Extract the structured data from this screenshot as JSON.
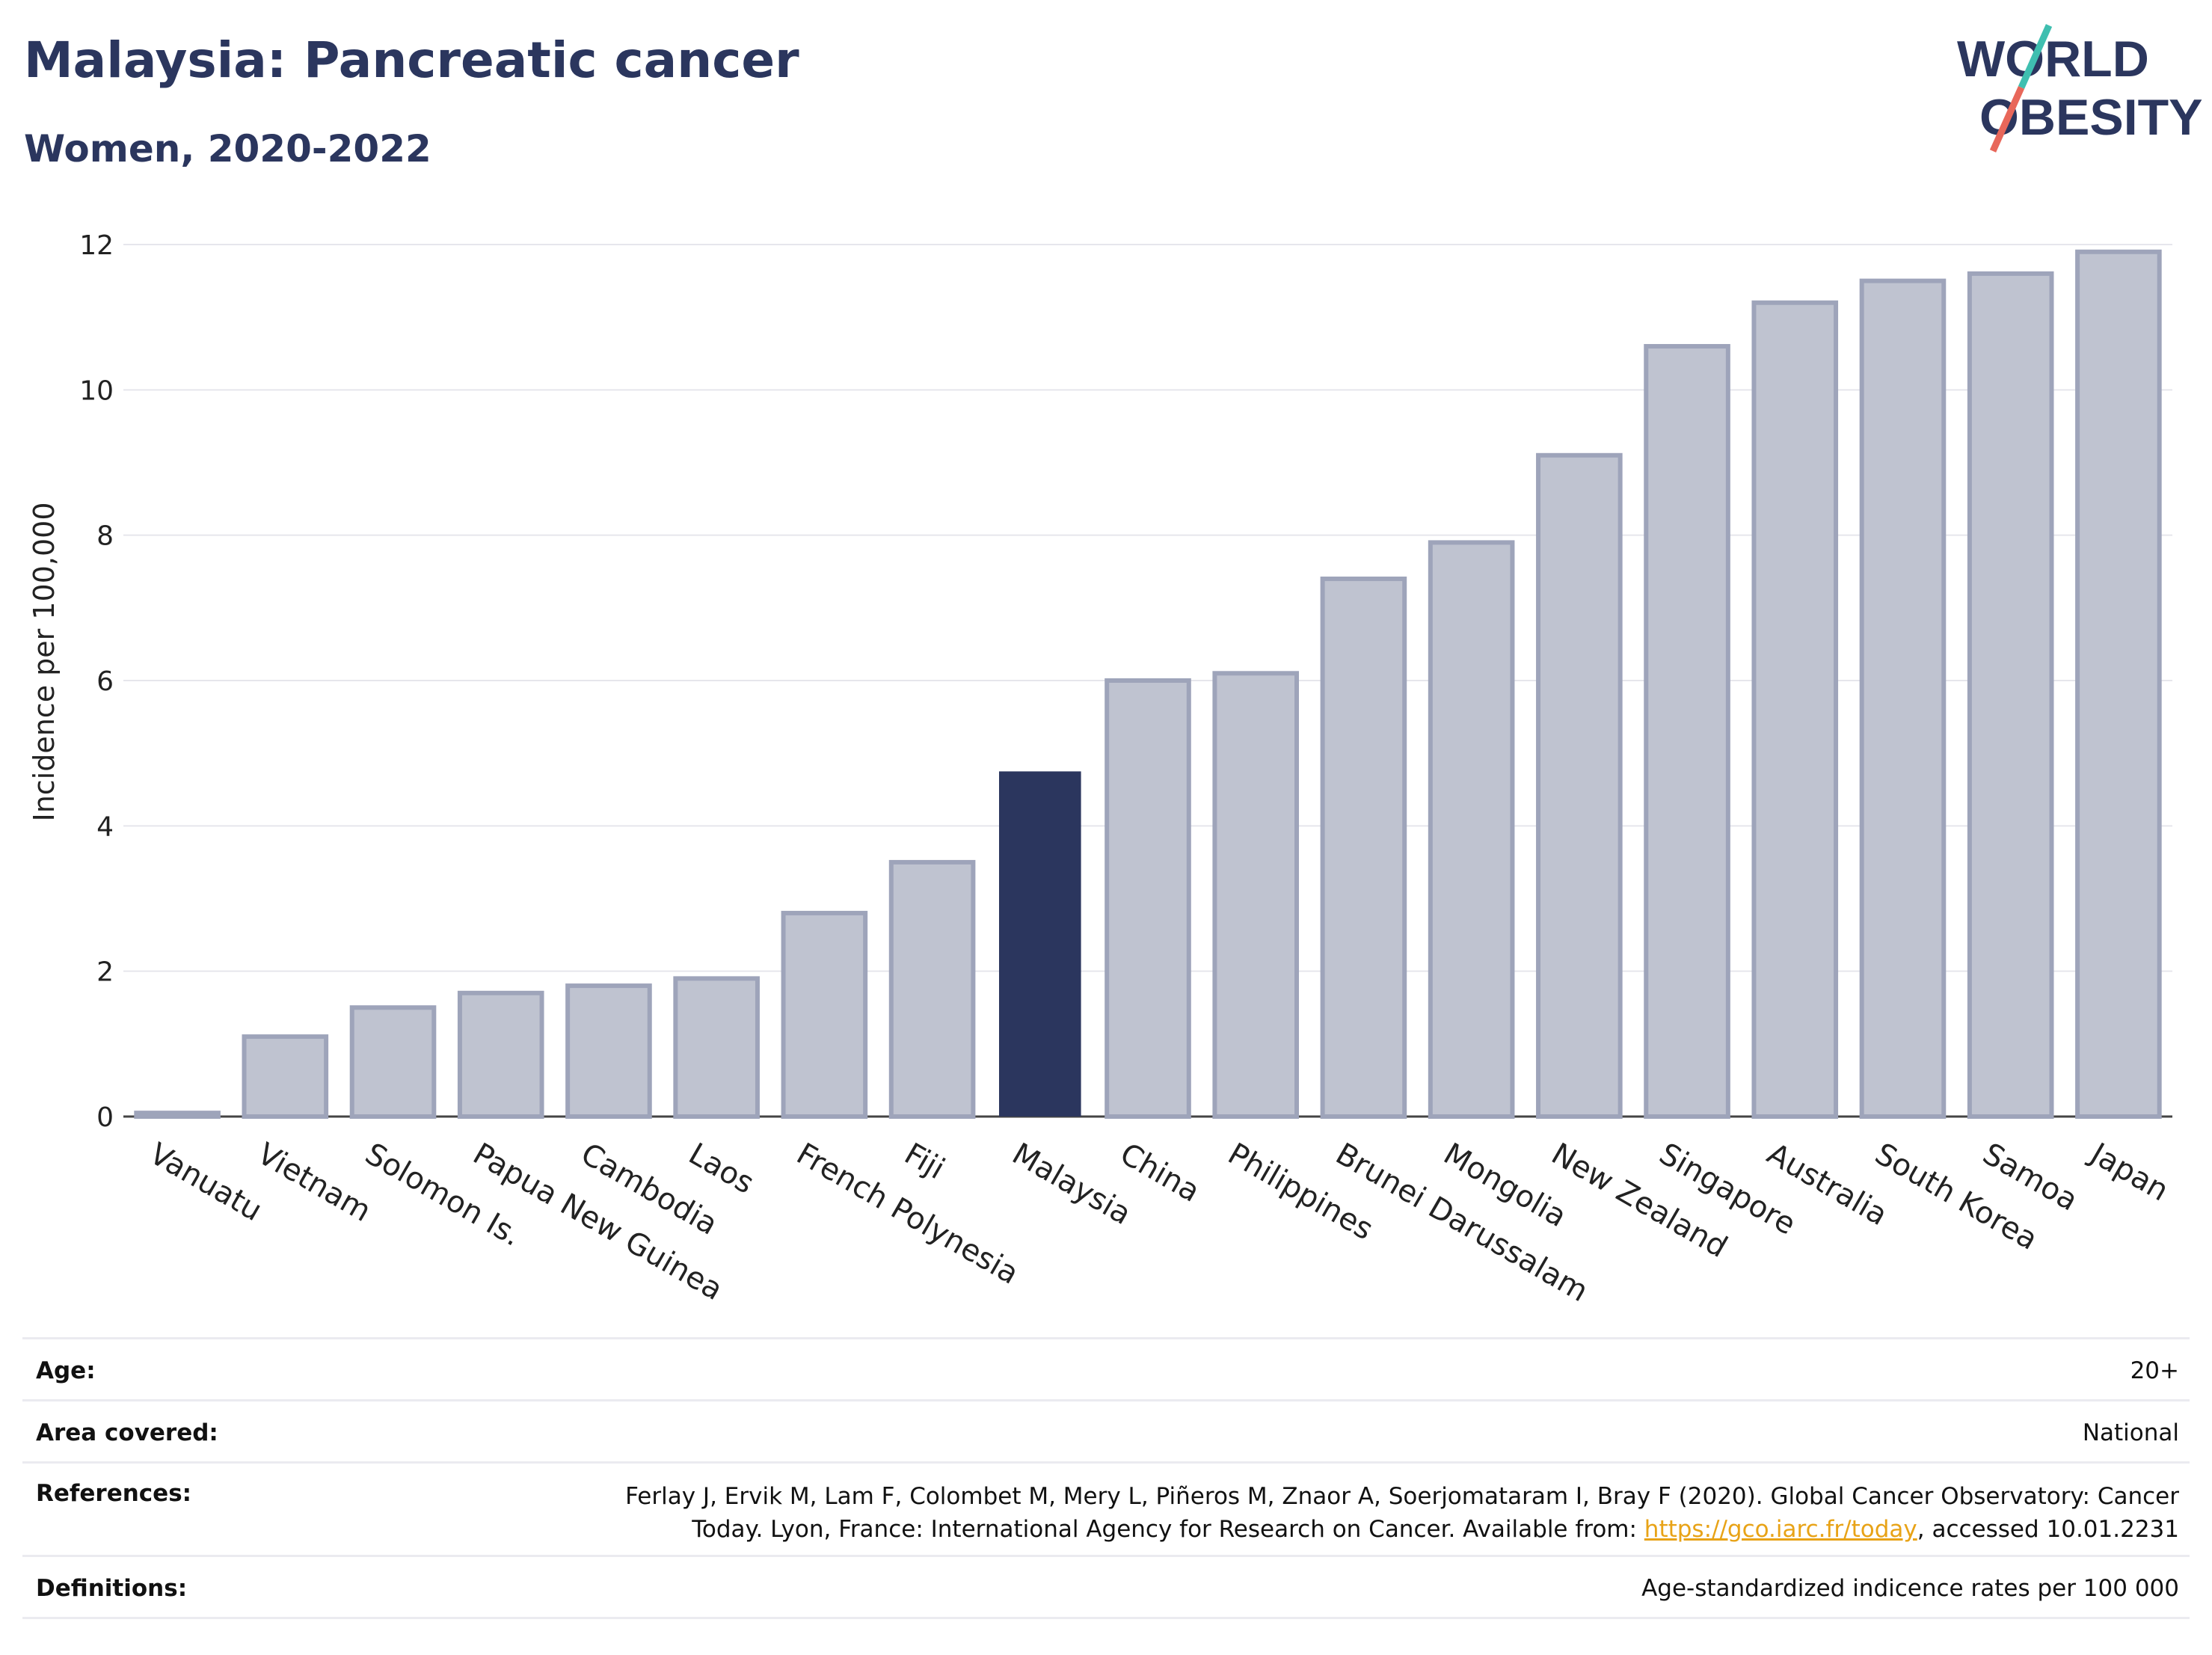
{
  "title": "Malaysia: Pancreatic cancer",
  "subtitle": "Women, 2020-2022",
  "logo": {
    "line1": "WORLD",
    "line2": "OBESITY"
  },
  "colors": {
    "highlight": "#2b365e",
    "bar": "#bfc3d0",
    "bar_border": "#9ea4ba",
    "grid": "#e6e6ec",
    "accent1": "#3fbfb0",
    "accent2": "#e8675a"
  },
  "chart_data": {
    "type": "bar",
    "ylabel": "Incidence per 100,000",
    "ylim": [
      0,
      12
    ],
    "yticks": [
      0,
      2,
      4,
      6,
      8,
      10,
      12
    ],
    "highlight": "Malaysia",
    "grid": true,
    "categories": [
      "Vanuatu",
      "Vietnam",
      "Solomon Is.",
      "Papua New Guinea",
      "Cambodia",
      "Laos",
      "French Polynesia",
      "Fiji",
      "Malaysia",
      "China",
      "Philippines",
      "Brunei Darussalam",
      "Mongolia",
      "New Zealand",
      "Singapore",
      "Australia",
      "South Korea",
      "Samoa",
      "Japan"
    ],
    "values": [
      0.05,
      1.1,
      1.5,
      1.7,
      1.8,
      1.9,
      2.8,
      3.5,
      4.75,
      6.0,
      6.1,
      7.4,
      7.9,
      9.1,
      10.6,
      11.2,
      11.5,
      11.6,
      11.9
    ]
  },
  "info": {
    "age_label": "Age:",
    "age_value": "20+",
    "area_label": "Area covered:",
    "area_value": "National",
    "references_label": "References:",
    "references_line1": "Ferlay J, Ervik M, Lam F, Colombet M, Mery L, Piñeros M, Znaor A, Soerjomataram I, Bray F (2020). Global Cancer Observatory: Cancer",
    "references_line2_pre": "Today. Lyon, France: International Agency for Research on Cancer. Available from: ",
    "references_link": "https://gco.iarc.fr/today",
    "references_line2_post": ", accessed 10.01.2231",
    "definitions_label": "Definitions:",
    "definitions_value": "Age-standardized indicence rates per 100 000"
  }
}
